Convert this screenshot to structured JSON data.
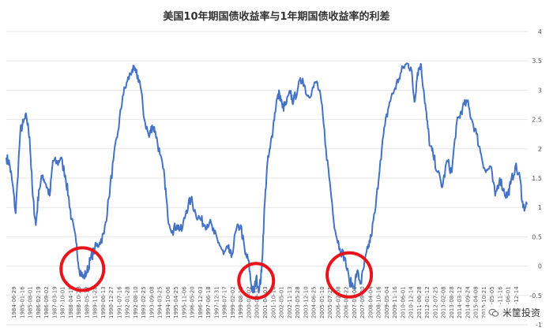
{
  "chart_data": {
    "type": "line",
    "title": "美国10年期国债收益率与1年期国债收益率的利差",
    "ylim": [
      -1,
      4
    ],
    "yticks": [
      "4",
      "3.5",
      "3",
      "2.5",
      "2",
      "1.5",
      "1",
      "0.5",
      "0",
      "-0.5",
      "-1"
    ],
    "x_tick_labels": [
      "1984-06-29",
      "1985-01-16",
      "1985-08-01",
      "1986-02-19",
      "1986-09-02",
      "1987-03-19",
      "1987-10-01",
      "1988-04-19",
      "1988-10-28",
      "1989-05-17",
      "1989-11-28",
      "1990-06-13",
      "1990-12-27",
      "1991-07-16",
      "1992-01-28",
      "1992-08-10",
      "1993-02-25",
      "1993-09-08",
      "1994-03-25",
      "1994-10-06",
      "1995-04-25",
      "1995-11-06",
      "1996-05-20",
      "1996-12-03",
      "1997-06-18",
      "1997-12-31",
      "1998-07-17",
      "1999-02-02",
      "1999-08-18",
      "2000-03-02",
      "2000-09-15",
      "2001-04-03",
      "2001-10-16",
      "2002-05-01",
      "2002-11-13",
      "2003-05-28",
      "2003-12-10",
      "2004-06-25",
      "2005-01-10",
      "2005-07-25",
      "2006-02-08",
      "2006-08-22",
      "2007-03-08",
      "2007-09-20",
      "2008-04-04",
      "2008-10-16",
      "2009-05-04",
      "2009-11-16",
      "2010-06-01",
      "2010-12-14",
      "2011-06-28",
      "2012-01-12",
      "2012-07-25",
      "2013-02-08",
      "2013-08-28",
      "2014-03-12",
      "2014-09-24",
      "2015-04-08",
      "2015-10-21",
      "2016-05-05",
      "2016-11-16",
      "2017-06-01",
      "2017-12-14"
    ],
    "series": [
      {
        "color": "#4472C4",
        "x": [
          1984.5,
          1984.7,
          1984.9,
          1985.1,
          1985.4,
          1985.6,
          1985.8,
          1986.0,
          1986.2,
          1986.4,
          1986.6,
          1986.85,
          1987.05,
          1987.3,
          1987.5,
          1987.8,
          1988.0,
          1988.3,
          1988.5,
          1988.7,
          1989.0,
          1989.2,
          1989.45,
          1989.7,
          1989.9,
          1990.2,
          1990.5,
          1990.8,
          1991.1,
          1991.4,
          1991.7,
          1992.0,
          1992.3,
          1992.6,
          1992.85,
          1993.1,
          1993.4,
          1993.7,
          1993.9,
          1994.1,
          1994.4,
          1994.7,
          1994.9,
          1995.2,
          1995.5,
          1995.8,
          1996.1,
          1996.4,
          1996.7,
          1997.0,
          1997.3,
          1997.6,
          1997.9,
          1998.2,
          1998.5,
          1998.8,
          1999.0,
          1999.3,
          1999.6,
          1999.9,
          2000.1,
          2000.3,
          2000.45,
          2000.6,
          2000.8,
          2000.95,
          2001.1,
          2001.3,
          2001.5,
          2001.7,
          2001.9,
          2002.1,
          2002.3,
          2002.5,
          2002.8,
          2003.0,
          2003.3,
          2003.6,
          2003.9,
          2004.2,
          2004.5,
          2004.8,
          2005.1,
          2005.4,
          2005.7,
          2006.0,
          2006.3,
          2006.6,
          2006.9,
          2007.1,
          2007.35,
          2007.55,
          2007.8,
          2008.0,
          2008.3,
          2008.6,
          2008.9,
          2009.2,
          2009.5,
          2009.8,
          2010.1,
          2010.4,
          2010.6,
          2010.8,
          2011.0,
          2011.2,
          2011.4,
          2011.6,
          2011.8,
          2012.0,
          2012.3,
          2012.6,
          2012.9,
          2013.2,
          2013.5,
          2013.7,
          2013.9,
          2014.2,
          2014.5,
          2014.8,
          2015.1,
          2015.4,
          2015.7,
          2016.0,
          2016.3,
          2016.6,
          2016.8,
          2017.0,
          2017.3,
          2017.6,
          2017.8,
          2018.05
        ],
        "y": [
          1.85,
          1.75,
          1.4,
          0.9,
          2.3,
          2.45,
          2.55,
          2.2,
          1.2,
          0.7,
          1.3,
          1.55,
          1.4,
          1.2,
          1.8,
          1.75,
          1.85,
          1.55,
          1.2,
          0.8,
          0.4,
          -0.05,
          -0.2,
          -0.1,
          0.1,
          0.3,
          0.4,
          0.55,
          1.15,
          1.8,
          2.3,
          2.9,
          3.15,
          3.35,
          3.3,
          3.15,
          2.5,
          2.2,
          2.4,
          2.3,
          1.9,
          1.5,
          0.85,
          0.6,
          0.7,
          0.6,
          0.95,
          1.15,
          0.9,
          0.8,
          0.7,
          0.75,
          0.55,
          0.4,
          0.2,
          0.3,
          0.15,
          0.6,
          0.7,
          0.2,
          0.1,
          -0.35,
          -0.45,
          -0.2,
          -0.4,
          -0.1,
          0.8,
          1.7,
          2.0,
          2.4,
          2.8,
          2.95,
          2.7,
          2.75,
          2.95,
          2.8,
          3.05,
          3.2,
          2.9,
          3.0,
          3.15,
          2.8,
          2.0,
          1.3,
          0.6,
          0.3,
          0.15,
          -0.25,
          -0.35,
          -0.1,
          -0.3,
          0.0,
          0.3,
          0.5,
          1.0,
          1.8,
          2.4,
          2.8,
          3.0,
          3.2,
          3.4,
          3.45,
          3.35,
          2.8,
          3.3,
          3.45,
          3.0,
          2.5,
          2.05,
          1.9,
          1.6,
          1.35,
          1.8,
          1.6,
          2.4,
          2.55,
          2.7,
          2.8,
          2.5,
          2.25,
          1.9,
          1.6,
          1.7,
          1.2,
          1.5,
          1.25,
          1.2,
          1.4,
          1.7,
          1.5,
          1.0,
          1.05
        ]
      }
    ]
  },
  "watermark": {
    "text": "米筐投资",
    "icon": "wechat-icon"
  }
}
